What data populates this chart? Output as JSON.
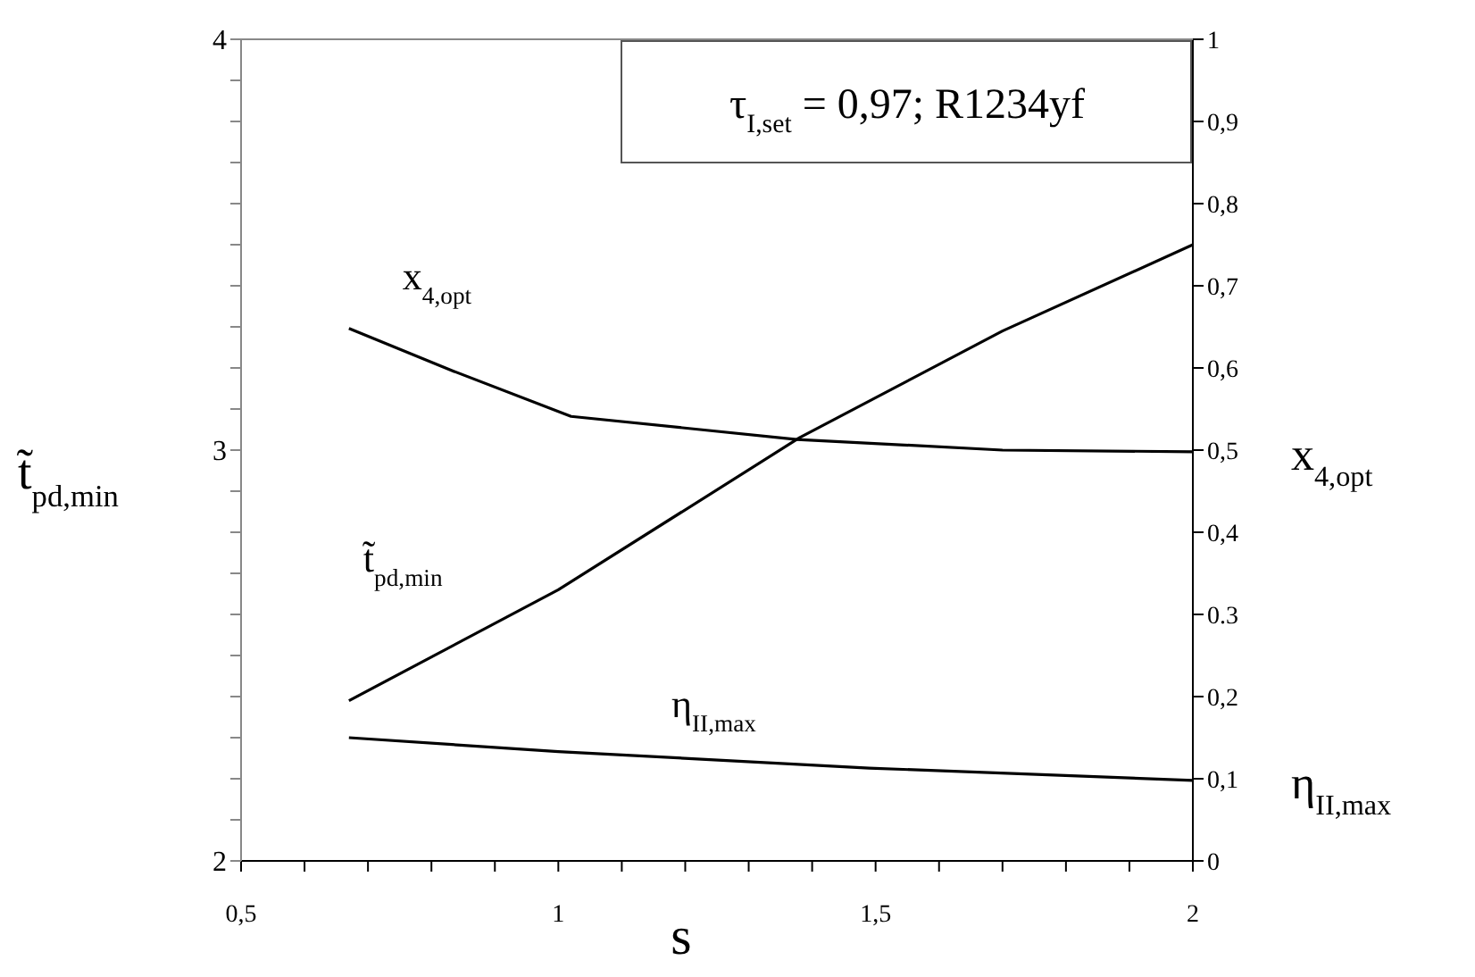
{
  "chart_data": {
    "type": "line",
    "xlabel": "s",
    "ylabel": "t̃$_{pd,min}$",
    "y2label": [
      "x$_{4,opt}$",
      "η$_{II,max}$"
    ],
    "annotations": [
      "τ$_{I,set}$ = 0,97; R1234yf"
    ],
    "series": [
      {
        "name": "x$_{4,opt}$",
        "color": "#000000",
        "axis": "y2",
        "x": [
          0.67,
          0.835,
          1.02,
          1.376,
          1.7,
          2.0
        ],
        "values": [
          0.648,
          0.596,
          0.541,
          0.513,
          0.5,
          0.498
        ]
      },
      {
        "name": "t̃$_{pd,min}$",
        "color": "#000000",
        "axis": "y",
        "x": [
          0.67,
          1.0,
          1.38,
          1.7,
          2.0
        ],
        "values": [
          2.39,
          2.66,
          3.03,
          3.29,
          3.5
        ]
      },
      {
        "name": "η$_{II,max}$",
        "color": "#000000",
        "axis": "y2",
        "x": [
          0.67,
          1.0,
          1.49,
          2.0
        ],
        "values": [
          0.15,
          0.133,
          0.113,
          0.098
        ]
      }
    ],
    "xlim": [
      0.5,
      2
    ],
    "xticks": [
      {
        "value": 0.5,
        "label": "0,5"
      },
      {
        "value": 0.6,
        "label": null
      },
      {
        "value": 0.7,
        "label": null
      },
      {
        "value": 0.8,
        "label": null
      },
      {
        "value": 0.9,
        "label": null
      },
      1,
      {
        "value": 1.1,
        "label": null
      },
      {
        "value": 1.2,
        "label": null
      },
      {
        "value": 1.3,
        "label": null
      },
      {
        "value": 1.4,
        "label": null
      },
      {
        "value": 1.5,
        "label": "1,5"
      },
      {
        "value": 1.6,
        "label": null
      },
      {
        "value": 1.7,
        "label": null
      },
      {
        "value": 1.8,
        "label": null
      },
      {
        "value": 1.9,
        "label": null
      },
      2
    ],
    "ylim": [
      2,
      4
    ],
    "yticks": [
      2,
      {
        "value": 2.1,
        "label": null
      },
      {
        "value": 2.2,
        "label": null
      },
      {
        "value": 2.3,
        "label": null
      },
      {
        "value": 2.4,
        "label": null
      },
      {
        "value": 2.5,
        "label": null
      },
      {
        "value": 2.6,
        "label": null
      },
      {
        "value": 2.7,
        "label": null
      },
      {
        "value": 2.8,
        "label": null
      },
      {
        "value": 2.9,
        "label": null
      },
      3,
      {
        "value": 3.1,
        "label": null
      },
      {
        "value": 3.2,
        "label": null
      },
      {
        "value": 3.3,
        "label": null
      },
      {
        "value": 3.4,
        "label": null
      },
      {
        "value": 3.5,
        "label": null
      },
      {
        "value": 3.6,
        "label": null
      },
      {
        "value": 3.7,
        "label": null
      },
      {
        "value": 3.8,
        "label": null
      },
      {
        "value": 3.9,
        "label": null
      },
      4
    ],
    "y2lim": [
      0,
      1
    ],
    "y2ticks": [
      0,
      {
        "value": 0.1,
        "label": "0,1"
      },
      {
        "value": 0.2,
        "label": "0,2"
      },
      {
        "value": 0.3,
        "label": "0.3"
      },
      {
        "value": 0.4,
        "label": "0,4"
      },
      {
        "value": 0.5,
        "label": "0,5"
      },
      {
        "value": 0.6,
        "label": "0,6"
      },
      {
        "value": 0.7,
        "label": "0,7"
      },
      {
        "value": 0.8,
        "label": "0,8"
      },
      {
        "value": 0.9,
        "label": "0,9"
      },
      1
    ],
    "grid": false,
    "legend": false,
    "marker": "none",
    "line_style": "solid"
  }
}
